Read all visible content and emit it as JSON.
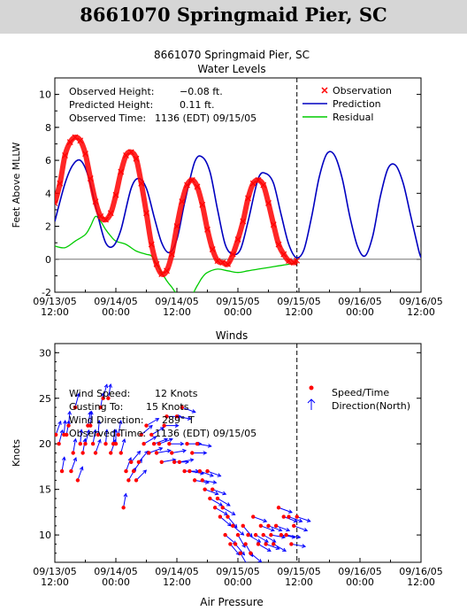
{
  "page_title": "8661070 Springmaid Pier, SC",
  "colors": {
    "observation": "#ff0000",
    "prediction": "#0000c0",
    "residual": "#00cc00",
    "wind_dot": "#ff0000",
    "wind_arrow": "#0000ff"
  },
  "chart_data": [
    {
      "type": "line",
      "station_title": "8661070 Springmaid Pier, SC",
      "title": "Water Levels",
      "ylabel": "Feet Above MLLW",
      "xlabel": "",
      "ylim": [
        -2,
        11
      ],
      "yticks": [
        -2,
        0,
        2,
        4,
        6,
        8,
        10
      ],
      "x_tick_labels": [
        {
          "hours": 0,
          "date": "09/13/05",
          "time": "12:00"
        },
        {
          "hours": 12,
          "date": "09/14/05",
          "time": "00:00"
        },
        {
          "hours": 24,
          "date": "09/14/05",
          "time": "12:00"
        },
        {
          "hours": 36,
          "date": "09/15/05",
          "time": "00:00"
        },
        {
          "hours": 48,
          "date": "09/15/05",
          "time": "12:00"
        },
        {
          "hours": 60,
          "date": "09/16/05",
          "time": "00:00"
        },
        {
          "hours": 72,
          "date": "09/16/05",
          "time": "12:00"
        }
      ],
      "current_time_hours": 47.6,
      "info": {
        "observed_height_label": "Observed Height:",
        "observed_height_value": "−0.08 ft.",
        "predicted_height_label": "Predicted Height:",
        "predicted_height_value": "0.11 ft.",
        "observed_time_label": "Observed Time:",
        "observed_time_value": "1136 (EDT) 09/15/05"
      },
      "legend": [
        {
          "symbol": "x",
          "label": "Observation"
        },
        {
          "symbol": "line-prediction",
          "label": "Prediction"
        },
        {
          "symbol": "line-residual",
          "label": "Residual"
        }
      ],
      "series": [
        {
          "name": "Prediction",
          "x": [
            0,
            2,
            3.5,
            5,
            6.5,
            8.5,
            10,
            11.5,
            13,
            15,
            16.5,
            18,
            19.5,
            21,
            22.5,
            24,
            25.5,
            27.5,
            29,
            30.5,
            32,
            33.5,
            35,
            36.5,
            38,
            40,
            41.5,
            43,
            44.5,
            46,
            47.5,
            49,
            50.5,
            52,
            53.5,
            55,
            56.5,
            58,
            59.5,
            61,
            62.5,
            64,
            65.5,
            67,
            68.5,
            70,
            71.5,
            72
          ],
          "y": [
            2.3,
            4.6,
            5.7,
            6.0,
            5.1,
            2.6,
            1.0,
            0.8,
            1.8,
            4.3,
            4.9,
            4.3,
            2.6,
            1.0,
            0.4,
            1.2,
            3.4,
            5.9,
            6.2,
            5.3,
            3.0,
            0.9,
            0.3,
            0.6,
            2.3,
            4.9,
            5.2,
            4.6,
            2.7,
            0.9,
            0.1,
            0.6,
            2.6,
            5.0,
            6.4,
            6.3,
            4.9,
            2.6,
            0.8,
            0.2,
            1.4,
            3.8,
            5.5,
            5.7,
            4.6,
            2.6,
            0.6,
            0.1
          ]
        },
        {
          "name": "Observation",
          "x": [
            0,
            1,
            2,
            3,
            4,
            5,
            6,
            7,
            8,
            9,
            10,
            11,
            12,
            13,
            14,
            15,
            16,
            17,
            18,
            19,
            20,
            21,
            22,
            23,
            24,
            25,
            26,
            27,
            28,
            29,
            30,
            31,
            32,
            33,
            34,
            35,
            36,
            37,
            38,
            39,
            40,
            41,
            42,
            43,
            44,
            45,
            46,
            47,
            47.6
          ],
          "y": [
            3.4,
            4.6,
            6.3,
            7.1,
            7.4,
            7.2,
            6.4,
            4.9,
            3.5,
            2.6,
            2.4,
            2.8,
            3.9,
            5.3,
            6.3,
            6.5,
            6.1,
            4.6,
            2.8,
            0.9,
            -0.3,
            -0.9,
            -0.7,
            0.3,
            2.0,
            3.5,
            4.5,
            4.8,
            4.4,
            3.3,
            1.8,
            0.6,
            -0.1,
            -0.2,
            -0.3,
            0.3,
            1.2,
            2.3,
            3.7,
            4.6,
            4.8,
            4.5,
            3.4,
            2.1,
            0.9,
            0.3,
            -0.1,
            -0.2,
            -0.08
          ]
        },
        {
          "name": "Residual",
          "x": [
            0,
            2,
            4,
            6,
            7,
            8,
            9,
            10,
            11,
            12,
            14,
            16,
            18,
            19,
            20,
            21,
            22,
            23,
            24,
            26,
            28,
            29,
            30,
            32,
            34,
            36,
            38,
            40,
            42,
            44,
            46,
            47.6
          ],
          "y": [
            0.8,
            0.7,
            1.1,
            1.5,
            2.0,
            2.6,
            2.3,
            1.8,
            1.4,
            1.1,
            0.9,
            0.5,
            0.3,
            0.2,
            -0.3,
            -0.8,
            -1.3,
            -1.7,
            -2.1,
            -2.6,
            -1.6,
            -1.1,
            -0.8,
            -0.6,
            -0.7,
            -0.8,
            -0.7,
            -0.6,
            -0.5,
            -0.4,
            -0.3,
            -0.2
          ]
        }
      ]
    },
    {
      "type": "scatter",
      "title": "Winds",
      "ylabel": "Knots",
      "xlabel": "",
      "ylim": [
        7,
        31
      ],
      "yticks": [
        10,
        15,
        20,
        25,
        30
      ],
      "x_tick_labels": [
        {
          "hours": 0,
          "date": "09/13/05",
          "time": "12:00"
        },
        {
          "hours": 12,
          "date": "09/14/05",
          "time": "00:00"
        },
        {
          "hours": 24,
          "date": "09/14/05",
          "time": "12:00"
        },
        {
          "hours": 36,
          "date": "09/15/05",
          "time": "00:00"
        },
        {
          "hours": 48,
          "date": "09/15/05",
          "time": "12:00"
        },
        {
          "hours": 60,
          "date": "09/16/05",
          "time": "00:00"
        },
        {
          "hours": 72,
          "date": "09/16/05",
          "time": "12:00"
        }
      ],
      "current_time_hours": 47.6,
      "info": {
        "wind_speed_label": "Wind Speed:",
        "wind_speed_value": "12 Knots",
        "gusting_label": "Gusting To:",
        "gusting_value": "15 Knots",
        "wind_direction_label": "Wind Direction:",
        "wind_direction_value": "289° T",
        "observed_time_label": "Observed Time:",
        "observed_time_value": "1136 (EDT) 09/15/05"
      },
      "legend": [
        {
          "symbol": "dot",
          "label": "Speed/Time"
        },
        {
          "symbol": "arrow",
          "label": "Direction(North)"
        }
      ],
      "points": [
        {
          "t": 0.2,
          "s": 21,
          "d": 200
        },
        {
          "t": 0.8,
          "s": 20,
          "d": 195
        },
        {
          "t": 1.4,
          "s": 17,
          "d": 190
        },
        {
          "t": 1.8,
          "s": 21,
          "d": 185
        },
        {
          "t": 2.3,
          "s": 21,
          "d": 190
        },
        {
          "t": 2.7,
          "s": 22,
          "d": 185
        },
        {
          "t": 3.2,
          "s": 17,
          "d": 200
        },
        {
          "t": 3.6,
          "s": 19,
          "d": 190
        },
        {
          "t": 4.0,
          "s": 24,
          "d": 195
        },
        {
          "t": 4.5,
          "s": 16,
          "d": 200
        },
        {
          "t": 5.0,
          "s": 20,
          "d": 185
        },
        {
          "t": 5.5,
          "s": 19,
          "d": 190
        },
        {
          "t": 6.0,
          "s": 20,
          "d": 195
        },
        {
          "t": 6.5,
          "s": 22,
          "d": 190
        },
        {
          "t": 7.0,
          "s": 22,
          "d": 185
        },
        {
          "t": 7.5,
          "s": 20,
          "d": 190
        },
        {
          "t": 8.0,
          "s": 19,
          "d": 200
        },
        {
          "t": 8.5,
          "s": 21,
          "d": 185
        },
        {
          "t": 9.0,
          "s": 24,
          "d": 190
        },
        {
          "t": 9.5,
          "s": 25,
          "d": 195
        },
        {
          "t": 10.0,
          "s": 20,
          "d": 185
        },
        {
          "t": 10.5,
          "s": 25,
          "d": 190
        },
        {
          "t": 11.0,
          "s": 19,
          "d": 200
        },
        {
          "t": 11.5,
          "s": 20,
          "d": 185
        },
        {
          "t": 12.0,
          "s": 20,
          "d": 180
        },
        {
          "t": 12.5,
          "s": 21,
          "d": 190
        },
        {
          "t": 13.0,
          "s": 19,
          "d": 195
        },
        {
          "t": 13.5,
          "s": 13,
          "d": 190
        },
        {
          "t": 14.0,
          "s": 17,
          "d": 200
        },
        {
          "t": 14.5,
          "s": 16,
          "d": 210
        },
        {
          "t": 15.0,
          "s": 18,
          "d": 220
        },
        {
          "t": 15.5,
          "s": 17,
          "d": 215
        },
        {
          "t": 16.0,
          "s": 16,
          "d": 225
        },
        {
          "t": 16.5,
          "s": 18,
          "d": 220
        },
        {
          "t": 17.0,
          "s": 21,
          "d": 230
        },
        {
          "t": 17.5,
          "s": 20,
          "d": 240
        },
        {
          "t": 18.0,
          "s": 22,
          "d": 240
        },
        {
          "t": 18.5,
          "s": 19,
          "d": 250
        },
        {
          "t": 19.0,
          "s": 21,
          "d": 240
        },
        {
          "t": 19.5,
          "s": 20,
          "d": 250
        },
        {
          "t": 20.0,
          "s": 19,
          "d": 260
        },
        {
          "t": 20.5,
          "s": 20,
          "d": 250
        },
        {
          "t": 21.0,
          "s": 18,
          "d": 260
        },
        {
          "t": 21.5,
          "s": 22,
          "d": 270
        },
        {
          "t": 22.0,
          "s": 23,
          "d": 270
        },
        {
          "t": 22.5,
          "s": 20,
          "d": 270
        },
        {
          "t": 23.0,
          "s": 19,
          "d": 260
        },
        {
          "t": 23.5,
          "s": 18,
          "d": 270
        },
        {
          "t": 24.0,
          "s": 23,
          "d": 280
        },
        {
          "t": 24.5,
          "s": 18,
          "d": 260
        },
        {
          "t": 25.0,
          "s": 24,
          "d": 290
        },
        {
          "t": 25.5,
          "s": 17,
          "d": 270
        },
        {
          "t": 26.0,
          "s": 20,
          "d": 270
        },
        {
          "t": 26.5,
          "s": 17,
          "d": 280
        },
        {
          "t": 27.0,
          "s": 19,
          "d": 270
        },
        {
          "t": 27.5,
          "s": 16,
          "d": 280
        },
        {
          "t": 28.0,
          "s": 20,
          "d": 280
        },
        {
          "t": 28.5,
          "s": 17,
          "d": 290
        },
        {
          "t": 29.0,
          "s": 16,
          "d": 280
        },
        {
          "t": 29.5,
          "s": 15,
          "d": 290
        },
        {
          "t": 30.0,
          "s": 17,
          "d": 290
        },
        {
          "t": 30.5,
          "s": 14,
          "d": 300
        },
        {
          "t": 31.0,
          "s": 15,
          "d": 290
        },
        {
          "t": 31.5,
          "s": 13,
          "d": 300
        },
        {
          "t": 32.0,
          "s": 14,
          "d": 300
        },
        {
          "t": 32.5,
          "s": 12,
          "d": 310
        },
        {
          "t": 33.0,
          "s": 13,
          "d": 300
        },
        {
          "t": 33.5,
          "s": 10,
          "d": 310
        },
        {
          "t": 34.0,
          "s": 12,
          "d": 320
        },
        {
          "t": 34.5,
          "s": 9,
          "d": 320
        },
        {
          "t": 35.0,
          "s": 11,
          "d": 310
        },
        {
          "t": 35.5,
          "s": 9,
          "d": 320
        },
        {
          "t": 36.0,
          "s": 10,
          "d": 330
        },
        {
          "t": 36.5,
          "s": 8,
          "d": 330
        },
        {
          "t": 37.0,
          "s": 11,
          "d": 320
        },
        {
          "t": 37.5,
          "s": 9,
          "d": 330
        },
        {
          "t": 38.0,
          "s": 10,
          "d": 300
        },
        {
          "t": 38.5,
          "s": 8,
          "d": 310
        },
        {
          "t": 39.0,
          "s": 12,
          "d": 290
        },
        {
          "t": 39.5,
          "s": 10,
          "d": 300
        },
        {
          "t": 40.0,
          "s": 9,
          "d": 300
        },
        {
          "t": 40.5,
          "s": 11,
          "d": 290
        },
        {
          "t": 41.0,
          "s": 10,
          "d": 300
        },
        {
          "t": 41.5,
          "s": 9,
          "d": 290
        },
        {
          "t": 42.0,
          "s": 11,
          "d": 290
        },
        {
          "t": 42.5,
          "s": 10,
          "d": 280
        },
        {
          "t": 43.0,
          "s": 9,
          "d": 300
        },
        {
          "t": 43.5,
          "s": 11,
          "d": 290
        },
        {
          "t": 44.0,
          "s": 13,
          "d": 290
        },
        {
          "t": 44.5,
          "s": 10,
          "d": 280
        },
        {
          "t": 45.0,
          "s": 12,
          "d": 290
        },
        {
          "t": 45.5,
          "s": 10,
          "d": 280
        },
        {
          "t": 46.0,
          "s": 12,
          "d": 290
        },
        {
          "t": 46.5,
          "s": 9,
          "d": 280
        },
        {
          "t": 47.0,
          "s": 11,
          "d": 290
        },
        {
          "t": 47.6,
          "s": 12,
          "d": 289
        }
      ]
    }
  ],
  "air_pressure_title": "Air Pressure"
}
